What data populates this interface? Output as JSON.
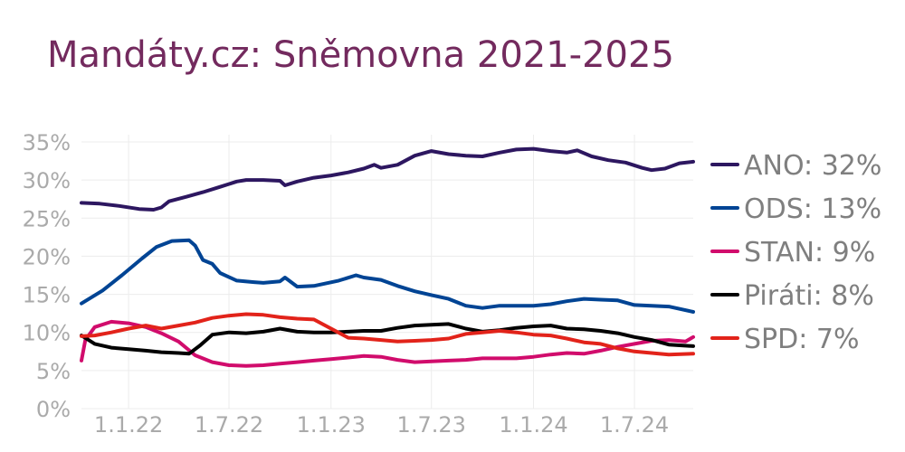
{
  "chart_data": {
    "type": "line",
    "title": "Mandáty.cz: Sněmovna 2021-2025",
    "xlabel": "",
    "ylabel": "",
    "y_axis": {
      "min": 0,
      "max": 35,
      "ticks": [
        0,
        5,
        10,
        15,
        20,
        25,
        30,
        35
      ],
      "tick_suffix": "%"
    },
    "x_axis": {
      "min": "2021-10-08",
      "max": "2024-10-15",
      "ticks": [
        {
          "date": "2022-01-01",
          "label": "1.1.22"
        },
        {
          "date": "2022-07-01",
          "label": "1.7.22"
        },
        {
          "date": "2023-01-01",
          "label": "1.1.23"
        },
        {
          "date": "2023-07-01",
          "label": "1.7.23"
        },
        {
          "date": "2024-01-01",
          "label": "1.1.24"
        },
        {
          "date": "2024-07-01",
          "label": "1.7.24"
        }
      ]
    },
    "grid": true,
    "legend_position": "right",
    "series": [
      {
        "name": "ANO",
        "legend": "ANO: 32%",
        "color": "#2d1760",
        "points": [
          [
            "2021-10-08",
            27.0
          ],
          [
            "2021-11-10",
            26.9
          ],
          [
            "2021-12-15",
            26.6
          ],
          [
            "2022-01-20",
            26.2
          ],
          [
            "2022-02-15",
            26.1
          ],
          [
            "2022-03-01",
            26.4
          ],
          [
            "2022-03-15",
            27.2
          ],
          [
            "2022-04-15",
            27.8
          ],
          [
            "2022-05-15",
            28.4
          ],
          [
            "2022-06-15",
            29.1
          ],
          [
            "2022-07-15",
            29.8
          ],
          [
            "2022-08-01",
            30.0
          ],
          [
            "2022-09-01",
            30.0
          ],
          [
            "2022-10-01",
            29.9
          ],
          [
            "2022-10-10",
            29.3
          ],
          [
            "2022-11-01",
            29.8
          ],
          [
            "2022-12-01",
            30.3
          ],
          [
            "2023-01-01",
            30.6
          ],
          [
            "2023-02-01",
            31.0
          ],
          [
            "2023-03-01",
            31.5
          ],
          [
            "2023-03-20",
            32.0
          ],
          [
            "2023-04-01",
            31.6
          ],
          [
            "2023-05-01",
            32.0
          ],
          [
            "2023-06-01",
            33.2
          ],
          [
            "2023-07-01",
            33.8
          ],
          [
            "2023-08-01",
            33.4
          ],
          [
            "2023-09-01",
            33.2
          ],
          [
            "2023-10-01",
            33.1
          ],
          [
            "2023-11-01",
            33.6
          ],
          [
            "2023-12-01",
            34.0
          ],
          [
            "2024-01-01",
            34.1
          ],
          [
            "2024-02-01",
            33.8
          ],
          [
            "2024-03-01",
            33.6
          ],
          [
            "2024-03-20",
            33.9
          ],
          [
            "2024-04-15",
            33.1
          ],
          [
            "2024-05-15",
            32.6
          ],
          [
            "2024-06-15",
            32.3
          ],
          [
            "2024-07-15",
            31.6
          ],
          [
            "2024-08-01",
            31.3
          ],
          [
            "2024-08-25",
            31.5
          ],
          [
            "2024-09-20",
            32.2
          ],
          [
            "2024-10-15",
            32.4
          ]
        ]
      },
      {
        "name": "ODS",
        "legend": "ODS: 13%",
        "color": "#004494",
        "points": [
          [
            "2021-10-08",
            13.8
          ],
          [
            "2021-11-15",
            15.5
          ],
          [
            "2021-12-20",
            17.5
          ],
          [
            "2022-01-25",
            19.7
          ],
          [
            "2022-02-20",
            21.2
          ],
          [
            "2022-03-20",
            22.0
          ],
          [
            "2022-04-20",
            22.1
          ],
          [
            "2022-05-01",
            21.4
          ],
          [
            "2022-05-15",
            19.5
          ],
          [
            "2022-06-01",
            19.0
          ],
          [
            "2022-06-15",
            17.8
          ],
          [
            "2022-07-15",
            16.8
          ],
          [
            "2022-08-15",
            16.6
          ],
          [
            "2022-09-01",
            16.5
          ],
          [
            "2022-10-01",
            16.7
          ],
          [
            "2022-10-10",
            17.2
          ],
          [
            "2022-11-01",
            16.0
          ],
          [
            "2022-12-01",
            16.1
          ],
          [
            "2023-01-15",
            16.8
          ],
          [
            "2023-02-15",
            17.5
          ],
          [
            "2023-03-01",
            17.2
          ],
          [
            "2023-04-01",
            16.9
          ],
          [
            "2023-05-01",
            16.1
          ],
          [
            "2023-06-01",
            15.4
          ],
          [
            "2023-07-01",
            14.9
          ],
          [
            "2023-08-01",
            14.4
          ],
          [
            "2023-09-01",
            13.5
          ],
          [
            "2023-10-01",
            13.2
          ],
          [
            "2023-11-01",
            13.5
          ],
          [
            "2023-12-01",
            13.5
          ],
          [
            "2024-01-01",
            13.5
          ],
          [
            "2024-02-01",
            13.7
          ],
          [
            "2024-03-01",
            14.1
          ],
          [
            "2024-04-01",
            14.4
          ],
          [
            "2024-05-01",
            14.3
          ],
          [
            "2024-06-01",
            14.2
          ],
          [
            "2024-07-01",
            13.6
          ],
          [
            "2024-08-01",
            13.5
          ],
          [
            "2024-09-01",
            13.4
          ],
          [
            "2024-10-15",
            12.7
          ]
        ]
      },
      {
        "name": "STAN",
        "legend": "STAN: 9%",
        "color": "#d10c6c",
        "points": [
          [
            "2021-10-08",
            6.3
          ],
          [
            "2021-10-15",
            9.0
          ],
          [
            "2021-11-01",
            10.7
          ],
          [
            "2021-12-01",
            11.4
          ],
          [
            "2022-01-01",
            11.2
          ],
          [
            "2022-02-01",
            10.7
          ],
          [
            "2022-03-01",
            9.9
          ],
          [
            "2022-04-01",
            8.8
          ],
          [
            "2022-05-01",
            7.0
          ],
          [
            "2022-06-01",
            6.1
          ],
          [
            "2022-07-01",
            5.7
          ],
          [
            "2022-08-01",
            5.6
          ],
          [
            "2022-09-01",
            5.7
          ],
          [
            "2022-10-01",
            5.9
          ],
          [
            "2022-11-01",
            6.1
          ],
          [
            "2022-12-01",
            6.3
          ],
          [
            "2023-01-01",
            6.5
          ],
          [
            "2023-02-01",
            6.7
          ],
          [
            "2023-03-01",
            6.9
          ],
          [
            "2023-04-01",
            6.8
          ],
          [
            "2023-05-01",
            6.4
          ],
          [
            "2023-06-01",
            6.1
          ],
          [
            "2023-07-01",
            6.2
          ],
          [
            "2023-08-01",
            6.3
          ],
          [
            "2023-09-01",
            6.4
          ],
          [
            "2023-10-01",
            6.6
          ],
          [
            "2023-11-01",
            6.6
          ],
          [
            "2023-12-01",
            6.6
          ],
          [
            "2024-01-01",
            6.8
          ],
          [
            "2024-02-01",
            7.1
          ],
          [
            "2024-03-01",
            7.3
          ],
          [
            "2024-04-01",
            7.2
          ],
          [
            "2024-05-01",
            7.6
          ],
          [
            "2024-06-01",
            8.1
          ],
          [
            "2024-07-01",
            8.5
          ],
          [
            "2024-08-01",
            8.9
          ],
          [
            "2024-09-01",
            9.0
          ],
          [
            "2024-10-01",
            8.8
          ],
          [
            "2024-10-15",
            9.4
          ]
        ]
      },
      {
        "name": "Piráti",
        "legend": "Piráti: 8%",
        "color": "#000000",
        "points": [
          [
            "2021-10-08",
            9.6
          ],
          [
            "2021-11-01",
            8.5
          ],
          [
            "2021-12-01",
            8.0
          ],
          [
            "2022-01-01",
            7.8
          ],
          [
            "2022-02-01",
            7.6
          ],
          [
            "2022-03-01",
            7.4
          ],
          [
            "2022-04-01",
            7.3
          ],
          [
            "2022-04-20",
            7.2
          ],
          [
            "2022-05-10",
            8.3
          ],
          [
            "2022-06-01",
            9.7
          ],
          [
            "2022-07-01",
            10.0
          ],
          [
            "2022-08-01",
            9.9
          ],
          [
            "2022-09-01",
            10.1
          ],
          [
            "2022-10-01",
            10.5
          ],
          [
            "2022-11-01",
            10.1
          ],
          [
            "2022-12-01",
            10.0
          ],
          [
            "2023-01-01",
            10.0
          ],
          [
            "2023-02-01",
            10.1
          ],
          [
            "2023-03-01",
            10.2
          ],
          [
            "2023-04-01",
            10.2
          ],
          [
            "2023-05-01",
            10.6
          ],
          [
            "2023-06-01",
            10.9
          ],
          [
            "2023-07-01",
            11.0
          ],
          [
            "2023-08-01",
            11.1
          ],
          [
            "2023-09-01",
            10.5
          ],
          [
            "2023-10-01",
            10.1
          ],
          [
            "2023-11-01",
            10.3
          ],
          [
            "2023-12-01",
            10.6
          ],
          [
            "2024-01-01",
            10.8
          ],
          [
            "2024-02-01",
            10.9
          ],
          [
            "2024-03-01",
            10.5
          ],
          [
            "2024-04-01",
            10.4
          ],
          [
            "2024-05-01",
            10.2
          ],
          [
            "2024-06-01",
            9.9
          ],
          [
            "2024-07-01",
            9.4
          ],
          [
            "2024-08-01",
            9.0
          ],
          [
            "2024-09-01",
            8.4
          ],
          [
            "2024-10-15",
            8.2
          ]
        ]
      },
      {
        "name": "SPD",
        "legend": "SPD: 7%",
        "color": "#e2231a",
        "points": [
          [
            "2021-10-08",
            9.5
          ],
          [
            "2021-11-01",
            9.6
          ],
          [
            "2021-12-01",
            10.0
          ],
          [
            "2022-01-01",
            10.5
          ],
          [
            "2022-02-01",
            10.9
          ],
          [
            "2022-03-01",
            10.5
          ],
          [
            "2022-04-01",
            10.9
          ],
          [
            "2022-05-01",
            11.3
          ],
          [
            "2022-06-01",
            11.9
          ],
          [
            "2022-07-01",
            12.2
          ],
          [
            "2022-08-01",
            12.4
          ],
          [
            "2022-09-01",
            12.3
          ],
          [
            "2022-10-01",
            12.0
          ],
          [
            "2022-11-01",
            11.8
          ],
          [
            "2022-12-01",
            11.7
          ],
          [
            "2023-01-01",
            10.5
          ],
          [
            "2023-02-01",
            9.3
          ],
          [
            "2023-03-01",
            9.2
          ],
          [
            "2023-04-01",
            9.0
          ],
          [
            "2023-05-01",
            8.8
          ],
          [
            "2023-06-01",
            8.9
          ],
          [
            "2023-07-01",
            9.0
          ],
          [
            "2023-08-01",
            9.2
          ],
          [
            "2023-09-01",
            9.8
          ],
          [
            "2023-10-01",
            10.0
          ],
          [
            "2023-11-01",
            10.2
          ],
          [
            "2023-12-01",
            10.0
          ],
          [
            "2024-01-01",
            9.7
          ],
          [
            "2024-02-01",
            9.6
          ],
          [
            "2024-03-01",
            9.2
          ],
          [
            "2024-04-01",
            8.7
          ],
          [
            "2024-05-01",
            8.5
          ],
          [
            "2024-06-01",
            7.9
          ],
          [
            "2024-07-01",
            7.5
          ],
          [
            "2024-08-01",
            7.3
          ],
          [
            "2024-09-01",
            7.1
          ],
          [
            "2024-10-15",
            7.2
          ]
        ]
      }
    ]
  }
}
